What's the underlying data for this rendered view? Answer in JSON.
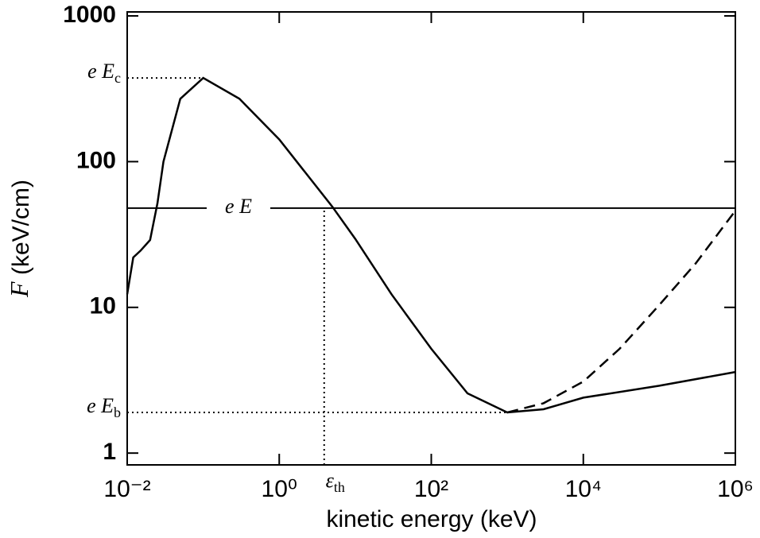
{
  "chart_data": {
    "type": "line",
    "x_label": "kinetic energy (keV)",
    "y_label": {
      "var": "F",
      "unit": "(keV/cm)"
    },
    "xscale": "log",
    "yscale": "log",
    "xlim": [
      0.01,
      1000000
    ],
    "ylim": [
      0.83,
      1065
    ],
    "xticks": [
      {
        "value": 0.01,
        "label": "10⁻²"
      },
      {
        "value": 1,
        "label": "10⁰"
      },
      {
        "value": 100,
        "label": "10²"
      },
      {
        "value": 10000,
        "label": "10⁴"
      },
      {
        "value": 1000000,
        "label": "10⁶"
      }
    ],
    "yticks": [
      1,
      10,
      100,
      1000
    ],
    "series": [
      {
        "color": "#000000",
        "dash": "solid",
        "x": [
          0.01,
          0.012,
          0.015,
          0.02,
          0.025,
          0.03,
          0.05,
          0.1,
          0.3,
          1,
          5,
          10,
          30,
          100,
          300,
          1000,
          3000,
          10000,
          100000,
          1000000
        ],
        "values": [
          12.3,
          22,
          24.5,
          29,
          52,
          100,
          270,
          375,
          270,
          142,
          49,
          29.5,
          12.3,
          5.2,
          2.57,
          1.9,
          2.0,
          2.4,
          2.9,
          3.6
        ]
      },
      {
        "color": "#000000",
        "dash": "dashed",
        "x": [
          1000,
          3000,
          10000,
          30000,
          100000,
          300000,
          1000000
        ],
        "values": [
          1.9,
          2.2,
          3.1,
          5.2,
          10.4,
          20,
          46
        ]
      }
    ],
    "reference_lines": [
      {
        "label": "e E",
        "sub": "c",
        "y": 375,
        "x": [
          0.01,
          0.1
        ],
        "style": "dotted"
      },
      {
        "label": "e E",
        "y": 48,
        "x": [
          0.01,
          1000000
        ],
        "style": "solid"
      },
      {
        "label": "e E",
        "sub": "b",
        "y": 1.9,
        "x": [
          0.01,
          1000
        ],
        "style": "dotted"
      },
      {
        "label": "ε",
        "sub": "th",
        "x": 3.9,
        "y_end": 48,
        "style": "dotted"
      }
    ]
  }
}
